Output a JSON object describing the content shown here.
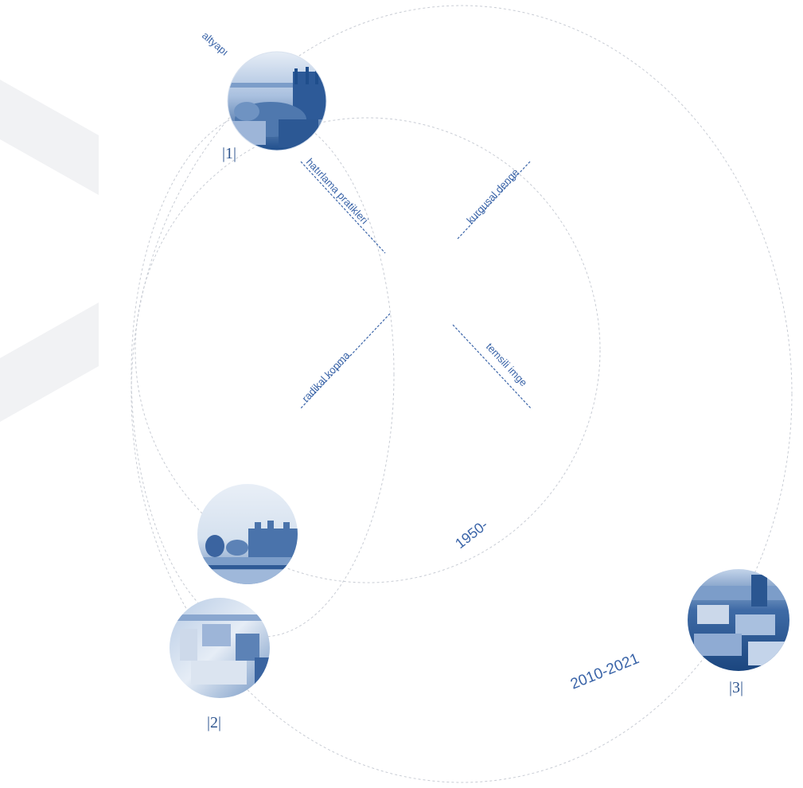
{
  "node_1": {
    "number": "|1|",
    "tag": "altyapı"
  },
  "node_2": {
    "number": "|2|"
  },
  "node_3": {
    "number": "|3|"
  },
  "axes": {
    "top_left": "hatırlama pratikleri",
    "top_right": "kurgusal denge",
    "bottom_left": "radikal kopma",
    "bottom_right": "temsili imge"
  },
  "periods": {
    "inner": "1950-",
    "outer": "2010-2021"
  },
  "colors": {
    "accent": "#3a64a8",
    "photo_dark": "#1f4e8c",
    "photo_light": "#c9d8ec",
    "guide_line": "#c8ccd4",
    "watermark": "#f1f2f4"
  }
}
